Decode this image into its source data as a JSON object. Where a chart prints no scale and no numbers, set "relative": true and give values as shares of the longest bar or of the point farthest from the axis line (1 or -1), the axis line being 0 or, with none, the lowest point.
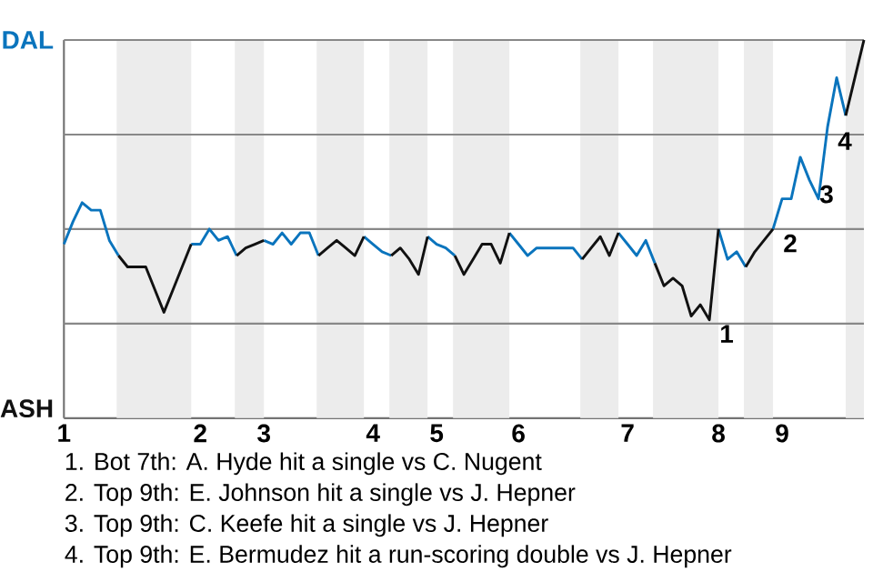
{
  "chart_data": {
    "type": "line",
    "relative": true,
    "categories": [
      "1",
      null,
      null,
      null,
      null,
      null,
      null,
      null,
      null,
      null,
      null,
      null,
      null,
      null,
      null,
      "2",
      null,
      null,
      null,
      null,
      null,
      null,
      "3",
      null,
      null,
      null,
      null,
      null,
      null,
      null,
      null,
      null,
      null,
      null,
      "4",
      null,
      null,
      null,
      null,
      null,
      null,
      "5",
      null,
      null,
      null,
      null,
      null,
      null,
      null,
      null,
      "6",
      null,
      null,
      null,
      null,
      null,
      null,
      null,
      null,
      null,
      null,
      null,
      "7",
      null,
      null,
      null,
      null,
      null,
      null,
      null,
      null,
      null,
      "8",
      null,
      null,
      null,
      null,
      null,
      null,
      "9",
      null,
      null,
      null,
      null,
      null,
      null,
      null,
      null,
      null
    ],
    "series": [
      {
        "name": "DAL",
        "color": "#0a74bd",
        "values": [
          0.46,
          0.52,
          0.57,
          0.55,
          0.55,
          0.47,
          0.43,
          null,
          null,
          null,
          null,
          null,
          null,
          null,
          0.46,
          0.46,
          0.5,
          0.47,
          0.48,
          0.43,
          null,
          null,
          0.47,
          0.46,
          0.49,
          0.46,
          0.49,
          0.49,
          0.43,
          null,
          null,
          null,
          null,
          0.48,
          0.46,
          0.44,
          0.43,
          null,
          null,
          null,
          0.48,
          0.46,
          0.45,
          0.43,
          null,
          null,
          null,
          null,
          null,
          0.49,
          0.46,
          0.43,
          0.45,
          0.45,
          0.45,
          0.45,
          0.45,
          0.42,
          null,
          null,
          null,
          0.49,
          0.46,
          0.43,
          0.47,
          0.41,
          null,
          null,
          null,
          null,
          null,
          null,
          0.5,
          0.42,
          0.44,
          0.4,
          null,
          null,
          0.5,
          0.58,
          0.58,
          0.69,
          0.63,
          0.58,
          0.77,
          0.9,
          0.8,
          null,
          null
        ]
      },
      {
        "name": "ASH",
        "color": "#111111",
        "values": [
          null,
          null,
          null,
          null,
          null,
          null,
          0.43,
          0.4,
          0.4,
          0.4,
          0.34,
          0.28,
          0.34,
          0.4,
          0.46,
          null,
          null,
          null,
          null,
          0.43,
          0.45,
          0.46,
          0.47,
          null,
          null,
          null,
          null,
          null,
          0.43,
          0.45,
          0.47,
          0.45,
          0.43,
          0.48,
          null,
          null,
          0.43,
          0.45,
          0.42,
          0.38,
          0.48,
          null,
          null,
          0.43,
          0.38,
          0.42,
          0.46,
          0.46,
          0.41,
          0.49,
          null,
          null,
          null,
          null,
          null,
          null,
          null,
          0.42,
          0.45,
          0.48,
          0.43,
          0.49,
          null,
          null,
          null,
          0.41,
          0.35,
          0.37,
          0.35,
          0.27,
          0.3,
          0.26,
          0.5,
          null,
          null,
          0.4,
          0.44,
          0.47,
          0.5,
          null,
          null,
          null,
          null,
          null,
          null,
          null,
          0.8,
          0.9,
          1
        ]
      }
    ],
    "ref_lines": [
      {
        "axis": "y",
        "value": 0.25,
        "color": "#888888"
      },
      {
        "axis": "y",
        "value": 0.5,
        "color": "#888888"
      },
      {
        "axis": "y",
        "value": 0.75,
        "color": "#888888"
      },
      {
        "axis": "y",
        "value": 1,
        "color": "#888888"
      }
    ],
    "annotations": [
      {
        "text": "1",
        "y": 0.26
      },
      {
        "text": "2",
        "y": 0.5
      },
      {
        "text": "3",
        "y": 0.63
      },
      {
        "text": "4",
        "y": 0.77
      },
      "1. Bot 7th: A. Hyde hit a single vs C. Nugent",
      "2. Top 9th: E. Johnson hit a single vs J. Hepner",
      "3. Top 9th: C. Keefe hit a single vs J. Hepner",
      "4. Top 9th: E. Bermudez hit a run-scoring double vs J. Hepner"
    ]
  }
}
